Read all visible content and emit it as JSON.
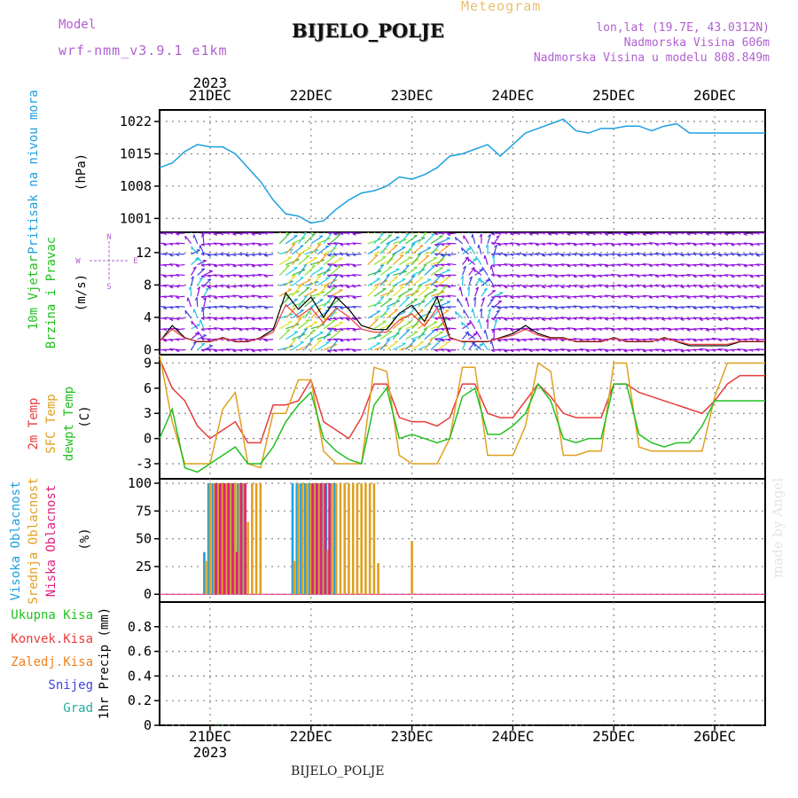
{
  "header": {
    "title": "BIJELO_POLJE",
    "subtitle": "Meteogram",
    "model_label": "Model",
    "model_name": "wrf-nmm_v3.9.1 e1km",
    "lonlat": "lon,lat (19.7E, 43.0312N)",
    "elevation": "Nadmorska Visina 606m",
    "model_elevation": "Nadmorska Visina u modelu 808.849m",
    "footer_station": "BIJELO_POLJE",
    "credit": "made by Angel"
  },
  "time_axis": {
    "year": "2023",
    "labels": [
      "21DEC",
      "22DEC",
      "23DEC",
      "24DEC",
      "25DEC",
      "26DEC"
    ]
  },
  "colors": {
    "pressure": "#1ea0e0",
    "temp2m": "#e83c3c",
    "sfc": "#e0a020",
    "dewpt": "#22c020",
    "high_cloud": "#1ea0e0",
    "mid_cloud": "#e0a020",
    "low_cloud": "#e02080",
    "total_rain": "#22c020",
    "conv_rain": "#e83c3c",
    "frz_rain": "#f08020",
    "snow": "#4040e0",
    "grad": "#20b0a0",
    "wind_purple": "#9010e0"
  },
  "chart_data": [
    {
      "type": "line",
      "name": "pressure",
      "ylabel_main": "Pritisak na nivou mora",
      "ylabel_unit": "(hPa)",
      "yticks": [
        1001,
        1008,
        1015,
        1022
      ],
      "ylim": [
        998,
        1024.5
      ],
      "x": [
        0,
        3,
        6,
        9,
        12,
        15,
        18,
        21,
        24,
        27,
        30,
        33,
        36,
        39,
        42,
        45,
        48,
        51,
        54,
        57,
        60,
        63,
        66,
        69,
        72,
        75,
        78,
        81,
        84,
        87,
        90,
        93,
        96,
        99,
        102,
        105,
        108,
        111,
        114,
        117,
        120,
        123,
        126,
        129,
        132,
        135,
        138,
        141,
        144
      ],
      "values": [
        1012,
        1013,
        1015.5,
        1017,
        1016.5,
        1016.5,
        1015,
        1012,
        1009,
        1005,
        1002,
        1001.5,
        1000,
        1000.5,
        1003,
        1005,
        1006.5,
        1007,
        1008,
        1010,
        1009.5,
        1010.5,
        1012,
        1014.5,
        1015,
        1016,
        1017,
        1014.5,
        1017,
        1019.5,
        1020.5,
        1021.5,
        1022.5,
        1020,
        1019.5,
        1020.5,
        1020.5,
        1021,
        1021,
        1020,
        1021,
        1021.5,
        1019.5,
        1019.5,
        1019.5,
        1019.5,
        1019.5,
        1019.5,
        1019.5
      ]
    },
    {
      "type": "line",
      "name": "wind",
      "ylabel_main": "10m Vjetar",
      "ylabel_sub": "Brzina i Pravac",
      "ylabel_unit": "(m/s)",
      "compass": [
        "N",
        "E",
        "S",
        "W"
      ],
      "yticks": [
        0,
        4,
        8,
        12
      ],
      "ylim": [
        -0.6,
        14.5
      ],
      "x": [
        0,
        3,
        6,
        9,
        12,
        15,
        18,
        21,
        24,
        27,
        30,
        33,
        36,
        39,
        42,
        45,
        48,
        51,
        54,
        57,
        60,
        63,
        66,
        69,
        72,
        75,
        78,
        81,
        84,
        87,
        90,
        93,
        96,
        99,
        102,
        105,
        108,
        111,
        114,
        117,
        120,
        123,
        126,
        129,
        132,
        135,
        138,
        141,
        144
      ],
      "speed": [
        1,
        3,
        1.5,
        1,
        1,
        1.5,
        1,
        1,
        1.5,
        2.5,
        7,
        5,
        6.5,
        4,
        6.5,
        5,
        3,
        2.5,
        2.5,
        4.5,
        5.5,
        3.5,
        6.5,
        1.5,
        1,
        1,
        1,
        1.5,
        2,
        3,
        2,
        1.5,
        1.5,
        1,
        1,
        1,
        1.5,
        1,
        1,
        1,
        1.5,
        1,
        0.5,
        0.5,
        0.5,
        0.5,
        1,
        1,
        1
      ]
    },
    {
      "type": "line",
      "name": "temperature",
      "ylabels": [
        "2m Temp",
        "SFC Temp",
        "dewpt Temp"
      ],
      "ylabel_unit": "(C)",
      "yticks": [
        -3,
        0,
        3,
        6,
        9
      ],
      "ylim": [
        -4.8,
        10
      ],
      "x": [
        0,
        3,
        6,
        9,
        12,
        15,
        18,
        21,
        24,
        27,
        30,
        33,
        36,
        39,
        42,
        45,
        48,
        51,
        54,
        57,
        60,
        63,
        66,
        69,
        72,
        75,
        78,
        81,
        84,
        87,
        90,
        93,
        96,
        99,
        102,
        105,
        108,
        111,
        114,
        117,
        120,
        123,
        126,
        129,
        132,
        135,
        138,
        141,
        144
      ],
      "series": [
        {
          "name": "2m Temp",
          "color": "#e83c3c",
          "values": [
            9.5,
            6,
            4.5,
            1.5,
            0,
            1,
            2,
            -0.5,
            -0.5,
            4,
            4,
            4.5,
            7,
            2,
            1,
            0,
            2.5,
            6.5,
            6.5,
            2.5,
            2,
            2,
            1.5,
            2.5,
            6.5,
            6.5,
            3,
            2.5,
            2.5,
            4.5,
            6.5,
            5,
            3,
            2.5,
            2.5,
            2.5,
            6.5,
            6.5,
            5.5,
            5,
            4.5,
            4,
            3.5,
            3,
            4.5,
            6.5,
            7.5,
            7.5,
            7.5
          ]
        },
        {
          "name": "SFC Temp",
          "color": "#e0a020",
          "values": [
            10,
            2,
            -3,
            -3,
            -3,
            3.5,
            5.5,
            -3,
            -3.5,
            3,
            3,
            7,
            7,
            -1.5,
            -3,
            -3,
            -3,
            8.5,
            8,
            -2,
            -3,
            -3,
            -3,
            0,
            8.5,
            8.5,
            -2,
            -2,
            -2,
            1.5,
            9,
            8,
            -2,
            -2,
            -1.5,
            -1.5,
            9,
            9,
            -1,
            -1.5,
            -1.5,
            -1.5,
            -1.5,
            -1.5,
            5,
            9,
            9,
            9,
            9
          ]
        },
        {
          "name": "dewpt Temp",
          "color": "#22c020",
          "values": [
            0,
            3.5,
            -3.5,
            -4,
            -3,
            -2,
            -1,
            -3,
            -3,
            -1,
            2,
            4,
            5.5,
            0,
            -1.5,
            -2.5,
            -3,
            4,
            6,
            0,
            0.5,
            0,
            -0.5,
            0,
            5,
            6,
            0.5,
            0.5,
            1.5,
            3,
            6.5,
            4.5,
            0,
            -0.5,
            0,
            0,
            6.5,
            6.5,
            0.5,
            -0.5,
            -1,
            -0.5,
            -0.5,
            1.5,
            4.5,
            4.5,
            4.5,
            4.5,
            4.5
          ]
        }
      ]
    },
    {
      "type": "bar",
      "name": "cloud_cover",
      "ylabels": [
        "Visoka Oblacnost",
        "Srednja Oblacnost",
        "Niska Oblacnost"
      ],
      "ylabel_unit": "(%)",
      "yticks": [
        0,
        25,
        50,
        75,
        100
      ],
      "ylim": [
        -7,
        104
      ],
      "series": [
        {
          "name": "Visoka Oblacnost",
          "color": "#1ea0e0",
          "x": [
            11,
            12,
            13,
            14,
            15,
            16,
            17,
            18,
            19,
            20,
            32,
            33,
            34,
            35,
            36,
            37,
            38,
            39,
            40,
            41,
            42
          ],
          "values": [
            38,
            100,
            100,
            100,
            100,
            100,
            100,
            100,
            100,
            100,
            100,
            100,
            100,
            100,
            100,
            100,
            100,
            100,
            100,
            100,
            100
          ]
        },
        {
          "name": "Srednja Oblacnost",
          "color": "#e0a020",
          "x": [
            11,
            12,
            13,
            14,
            15,
            16,
            17,
            18,
            19,
            20,
            21,
            22,
            23,
            24,
            32,
            33,
            34,
            35,
            36,
            37,
            38,
            39,
            40,
            41,
            42,
            43,
            44,
            45,
            46,
            47,
            48,
            49,
            50,
            51,
            52,
            60
          ],
          "values": [
            30,
            100,
            100,
            100,
            100,
            100,
            100,
            100,
            100,
            100,
            65,
            100,
            100,
            100,
            30,
            100,
            100,
            100,
            100,
            100,
            100,
            100,
            40,
            100,
            100,
            100,
            100,
            100,
            100,
            100,
            100,
            100,
            100,
            100,
            28,
            48
          ]
        },
        {
          "name": "Niska Oblacnost",
          "color": "#e02080",
          "x": [
            13,
            14,
            15,
            16,
            17,
            18,
            19,
            20,
            36,
            37,
            38,
            39,
            40
          ],
          "values": [
            100,
            100,
            100,
            100,
            100,
            38,
            100,
            100,
            100,
            100,
            100,
            100,
            100
          ]
        }
      ]
    },
    {
      "type": "bar",
      "name": "precipitation",
      "ylabels": [
        "Ukupna Kisa",
        "Konvek.Kisa",
        "Zaledj.Kisa",
        "Snijeg",
        "Grad"
      ],
      "ylabel_unit": "1hr Precip (mm)",
      "yticks": [
        0,
        0.2,
        0.4,
        0.6,
        0.8
      ],
      "ylim": [
        0,
        1.0
      ],
      "series": [
        {
          "name": "Ukupna Kisa",
          "color": "#22c020",
          "x": [
            14
          ],
          "values": [
            0.01
          ]
        }
      ]
    }
  ]
}
